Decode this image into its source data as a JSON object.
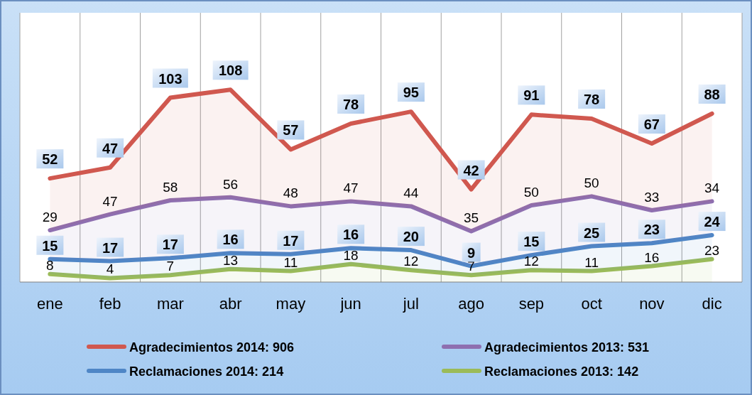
{
  "chart_data": {
    "type": "area",
    "stacked": true,
    "data_labels": true,
    "legend": "bottom",
    "grid": "x",
    "categories": [
      "ene",
      "feb",
      "mar",
      "abr",
      "may",
      "jun",
      "jul",
      "ago",
      "sep",
      "oct",
      "nov",
      "dic"
    ],
    "series": [
      {
        "name": "Reclamaciones 2013: 142",
        "color": "#9bbb59",
        "values": [
          8,
          4,
          7,
          13,
          11,
          18,
          12,
          7,
          12,
          11,
          16,
          23
        ]
      },
      {
        "name": "Reclamaciones 2014: 214",
        "color": "#4f86c6",
        "values": [
          15,
          17,
          17,
          16,
          17,
          16,
          20,
          9,
          15,
          25,
          23,
          24
        ]
      },
      {
        "name": "Agradecimientos 2013: 531",
        "color": "#8e6fb0",
        "values": [
          29,
          47,
          58,
          56,
          48,
          47,
          44,
          35,
          50,
          50,
          33,
          34
        ]
      },
      {
        "name": "Agradecimientos 2014: 906",
        "color": "#d0584f",
        "values": [
          52,
          47,
          103,
          108,
          57,
          78,
          95,
          42,
          91,
          78,
          67,
          88
        ]
      }
    ]
  }
}
